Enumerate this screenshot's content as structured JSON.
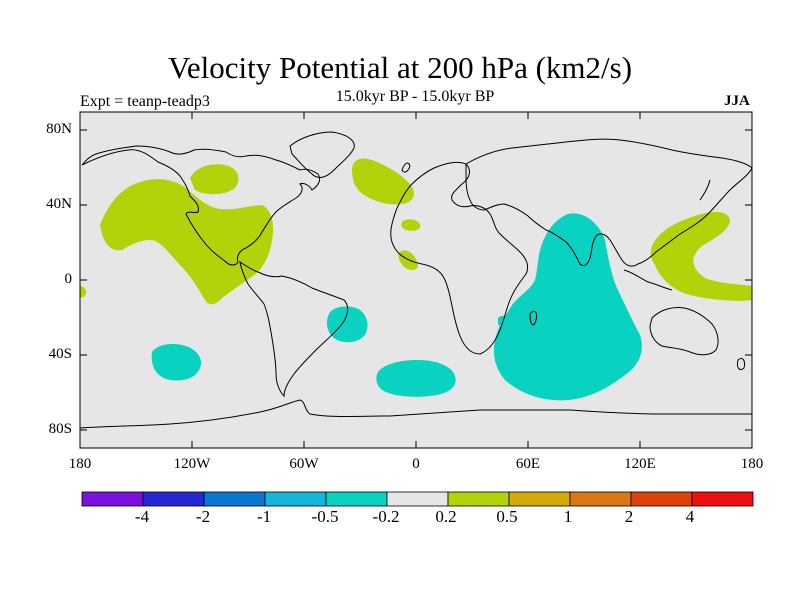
{
  "title": "Velocity Potential at 200 hPa (km2/s)",
  "subtitle": "15.0kyr BP - 15.0kyr BP",
  "experiment": "Expt = teanp-teadp3",
  "season": "JJA",
  "axes": {
    "lat_ticks": [
      "80N",
      "40N",
      "0",
      "40S",
      "80S"
    ],
    "lon_ticks": [
      "180",
      "120W",
      "60W",
      "0",
      "60E",
      "120E",
      "180"
    ]
  },
  "colorbar": {
    "labels": [
      "-4",
      "-2",
      "-1",
      "-0.5",
      "-0.2",
      "0.2",
      "0.5",
      "1",
      "2",
      "4"
    ],
    "colors": [
      "#7a12dc",
      "#2828d2",
      "#0a78d2",
      "#14b4dc",
      "#0ad2c0",
      "#e6e6e6",
      "#b4d20a",
      "#d2aa0a",
      "#dc7814",
      "#dc420a",
      "#ee1010"
    ]
  },
  "map_colors": {
    "background": "#e6e6e6",
    "negative": "#0ad2c0",
    "positive": "#b4d20a",
    "coast": "#000000"
  }
}
